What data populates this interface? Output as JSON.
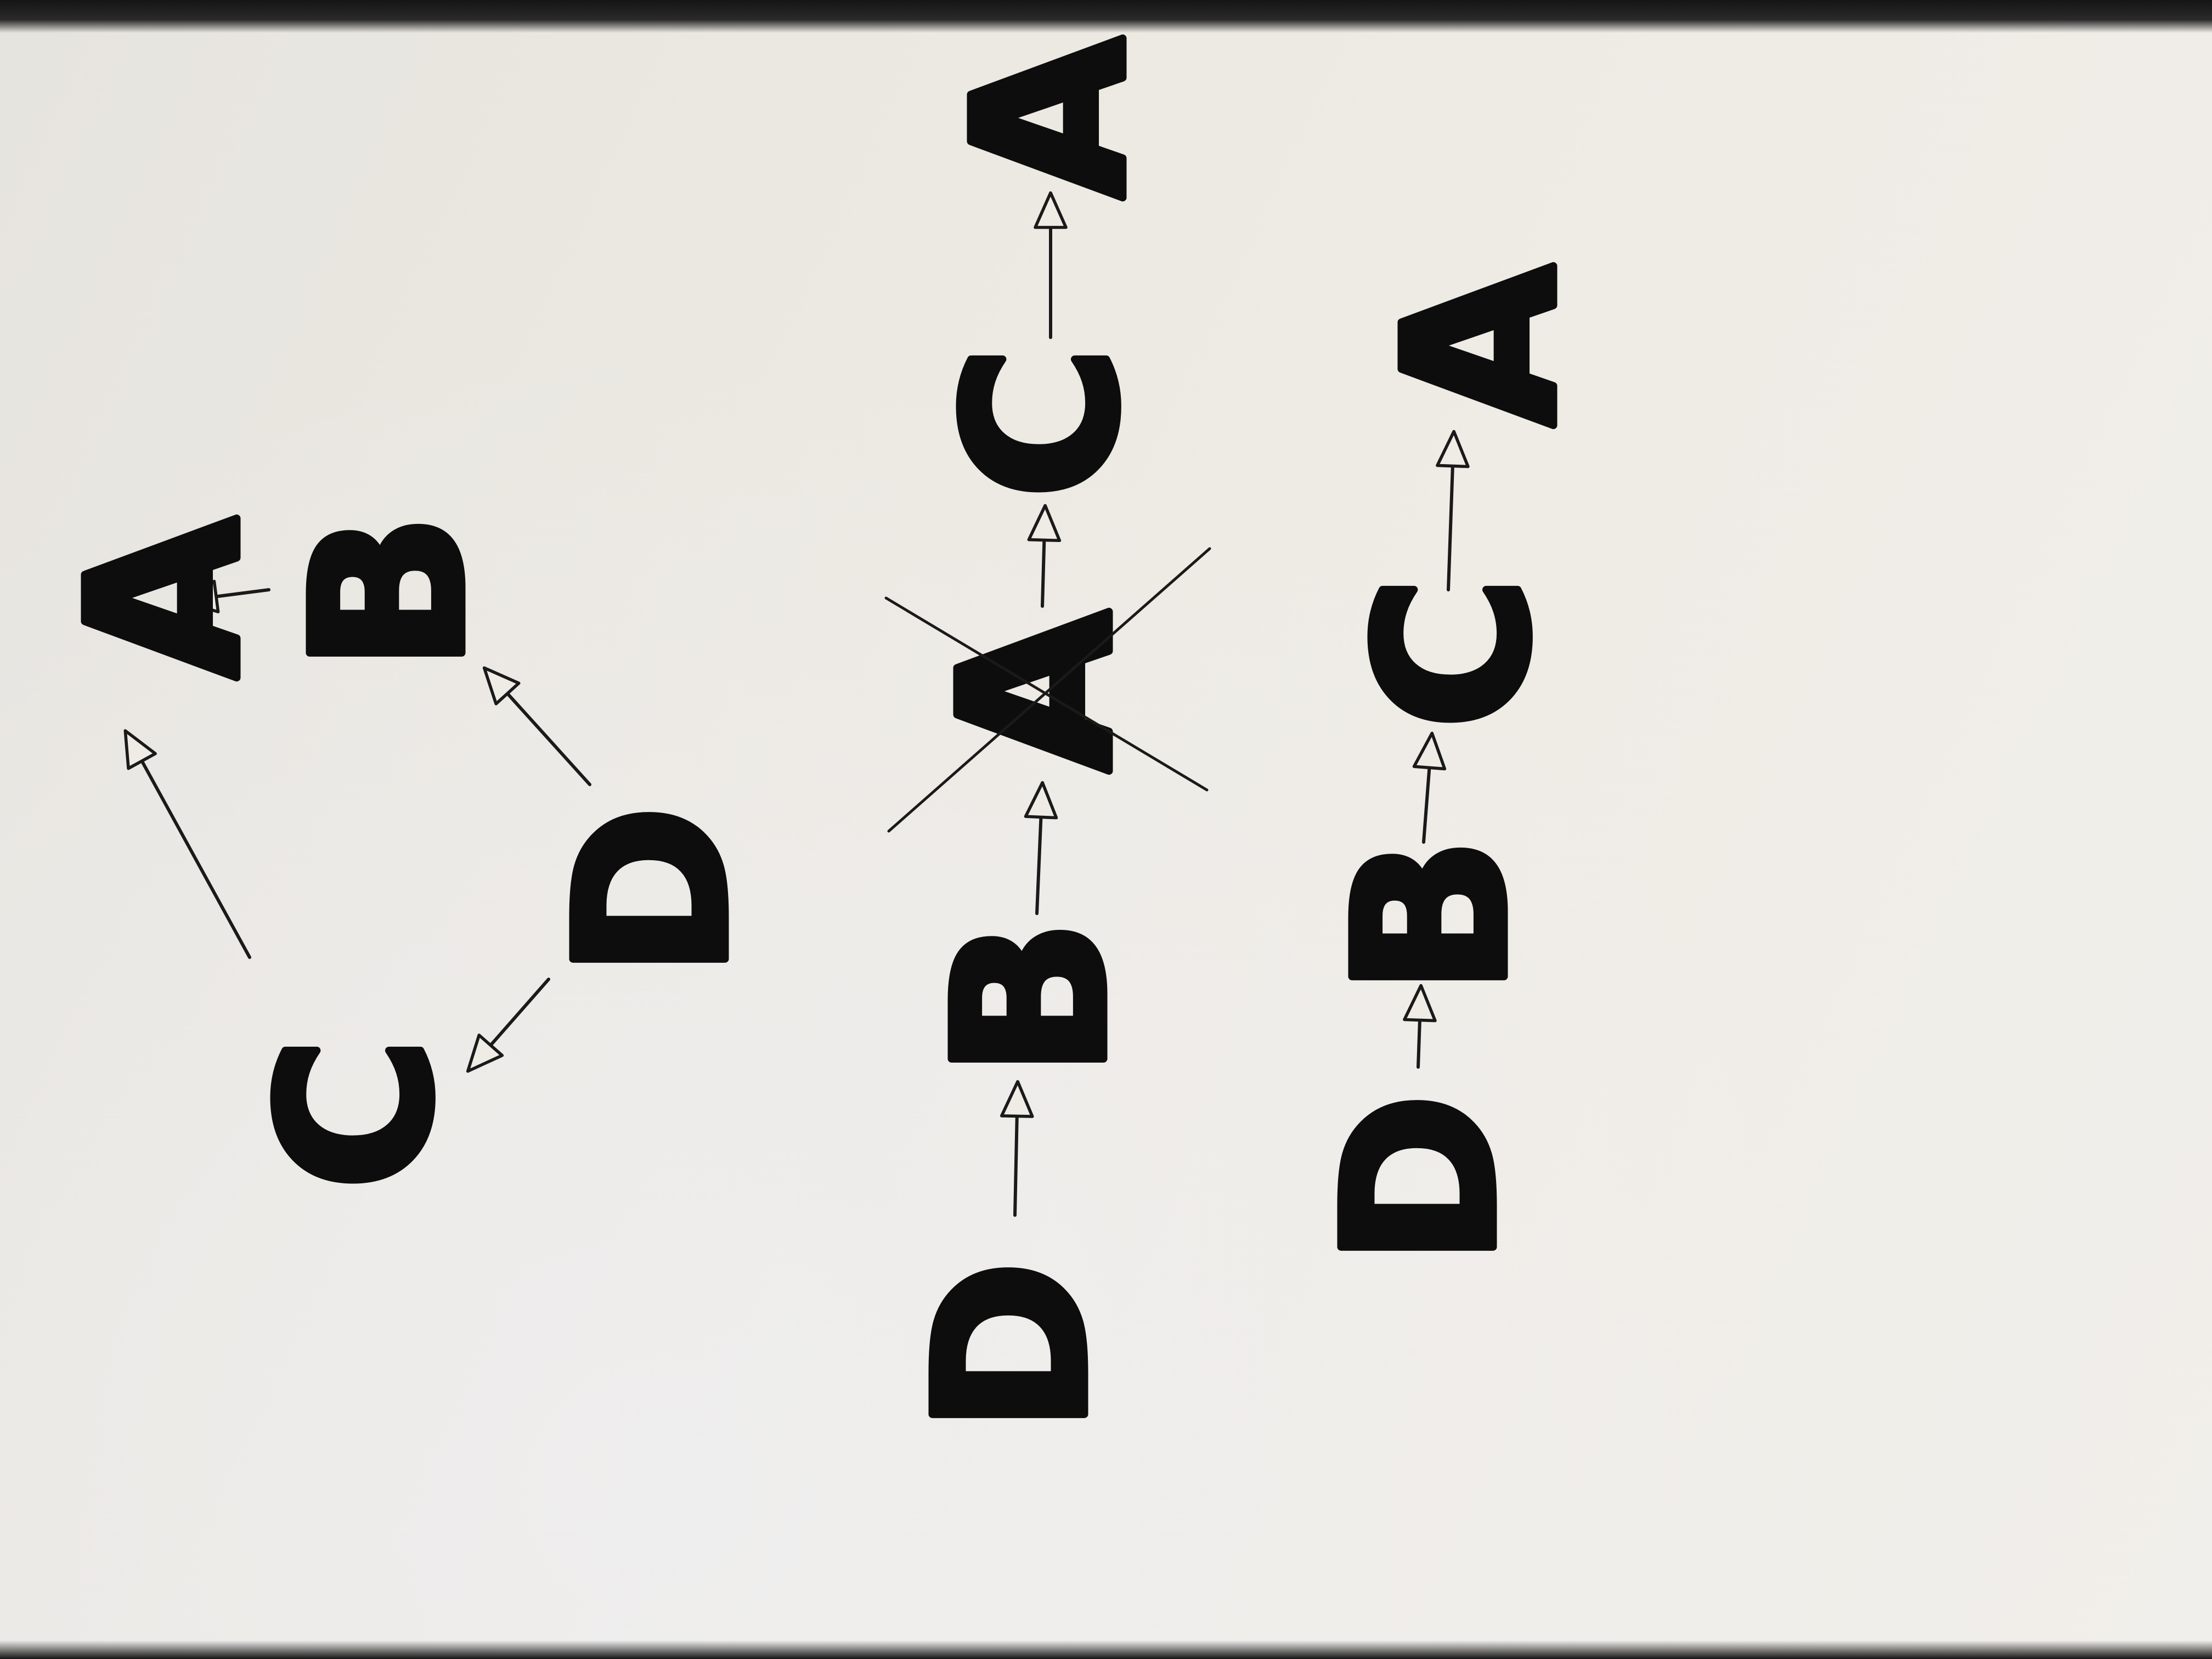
{
  "graphs": [
    {
      "nodes": [
        {
          "id": "A",
          "label": "A"
        },
        {
          "id": "B",
          "label": "B"
        },
        {
          "id": "D",
          "label": "D"
        },
        {
          "id": "C",
          "label": "C"
        }
      ],
      "edges": [
        {
          "from": "B",
          "to": "A"
        },
        {
          "from": "D",
          "to": "B"
        },
        {
          "from": "C",
          "to": "A"
        },
        {
          "from": "D",
          "to": "C"
        }
      ]
    },
    {
      "sequence": [
        "D",
        "B",
        "A",
        "C",
        "A"
      ],
      "crossed_out_index": 2
    },
    {
      "sequence": [
        "D",
        "B",
        "C",
        "A"
      ]
    }
  ],
  "colors": {
    "ink": "#0d0d0d",
    "paper": "#ece9e2"
  }
}
